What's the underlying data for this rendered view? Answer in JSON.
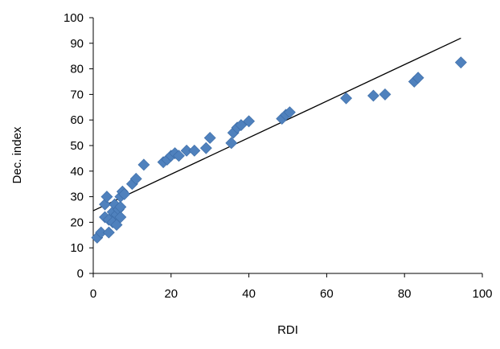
{
  "chart_data": {
    "type": "scatter",
    "title": "",
    "xlabel": "RDI",
    "ylabel": "Dec. index",
    "xlim": [
      0,
      100
    ],
    "ylim": [
      0,
      100
    ],
    "x_ticks": [
      0,
      20,
      40,
      60,
      80,
      100
    ],
    "y_ticks": [
      0,
      10,
      20,
      30,
      40,
      50,
      60,
      70,
      80,
      90,
      100
    ],
    "grid": false,
    "legend": "none",
    "marker": "diamond",
    "colors": {
      "points": "#4f81bd",
      "trendline": "#000000",
      "axes": "#000000"
    },
    "series": [
      {
        "x": [
          1,
          2,
          3,
          3,
          3.5,
          4,
          4,
          5,
          5,
          5.5,
          6,
          6,
          6.5,
          7,
          7,
          7,
          7.5,
          8,
          10,
          11,
          13,
          18,
          19,
          20,
          21,
          22,
          24,
          26,
          29,
          30,
          35.5,
          36,
          37,
          38,
          40,
          48.5,
          49.5,
          50.5,
          65,
          72,
          75,
          82.5,
          83.5,
          94.5
        ],
        "y": [
          14,
          16,
          27,
          22,
          30,
          16,
          21,
          24,
          20,
          27,
          23,
          19,
          25,
          22,
          26,
          30,
          32,
          31,
          35,
          37,
          42.5,
          43.5,
          44.5,
          46,
          47,
          46,
          48,
          48,
          49,
          53,
          51,
          55,
          57,
          58,
          59.5,
          60.5,
          62,
          63,
          68.5,
          69.5,
          70,
          75,
          76.5,
          82.5
        ]
      }
    ],
    "trendline": {
      "type": "linear",
      "x": [
        0,
        94.5
      ],
      "y": [
        24.5,
        92
      ]
    }
  }
}
